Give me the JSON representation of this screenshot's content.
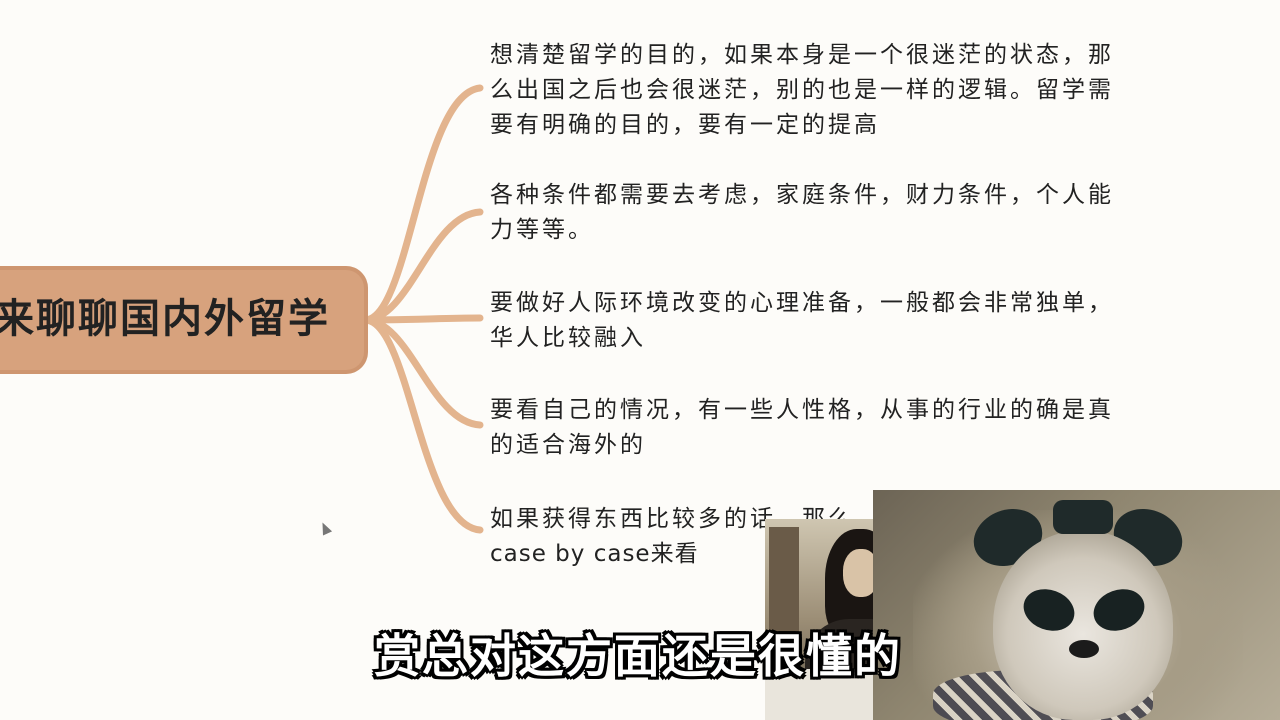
{
  "mindmap": {
    "topic": "来聊聊国内外留学",
    "branches": [
      {
        "text": "想清楚留学的目的，如果本身是一个很迷茫的状态，那么出国之后也会很迷茫，别的也是一样的逻辑。留学需要有明确的目的，要有一定的提高"
      },
      {
        "text": "各种条件都需要去考虑，家庭条件，财力条件，个人能力等等。"
      },
      {
        "text": "要做好人际环境改变的心理准备，一般都会非常独单，华人比较融入"
      },
      {
        "text": "要看自己的情况，有一些人性格，从事的行业的确是真的适合海外的"
      },
      {
        "line1": "如果获得东西比较多的话，那么",
        "line2": "case by case来看"
      }
    ]
  },
  "subtitle": "赏总对这方面还是很懂的",
  "colors": {
    "topic_fill": "#d7a27d",
    "connector": "#e3b48e",
    "background": "#fdfcf9"
  }
}
